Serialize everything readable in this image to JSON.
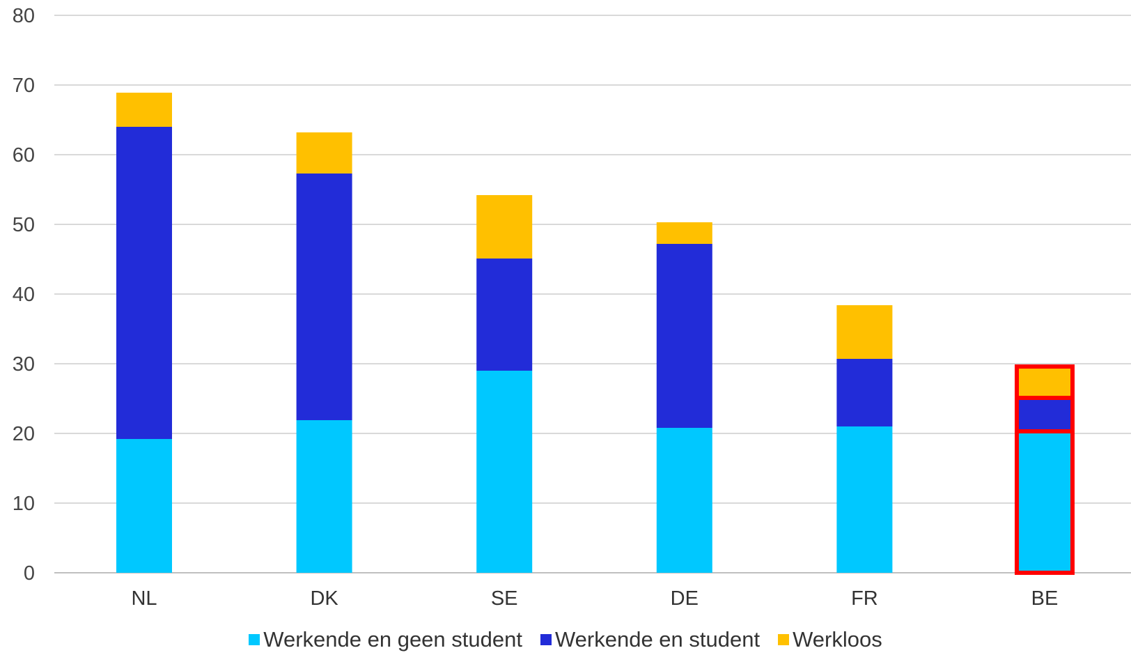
{
  "chart_data": {
    "type": "bar",
    "stacked": true,
    "title": "",
    "xlabel": "",
    "ylabel": "",
    "ylim": [
      0,
      80
    ],
    "yticks": [
      0,
      10,
      20,
      30,
      40,
      50,
      60,
      70,
      80
    ],
    "grid": true,
    "legend_position": "bottom",
    "categories": [
      "NL",
      "DK",
      "SE",
      "DE",
      "FR",
      "BE"
    ],
    "series": [
      {
        "name": "Werkende en geen student",
        "color": "#00C8FF",
        "values": [
          19.2,
          21.9,
          29.0,
          20.8,
          21.0,
          20.3
        ]
      },
      {
        "name": "Werkende en student",
        "color": "#222CD8",
        "values": [
          44.8,
          35.4,
          16.1,
          26.4,
          9.7,
          4.8
        ]
      },
      {
        "name": "Werkloos",
        "color": "#FFC000",
        "values": [
          4.9,
          5.9,
          9.1,
          3.1,
          7.7,
          4.5
        ]
      }
    ],
    "highlight": {
      "category": "BE",
      "color": "#FF0000"
    }
  }
}
